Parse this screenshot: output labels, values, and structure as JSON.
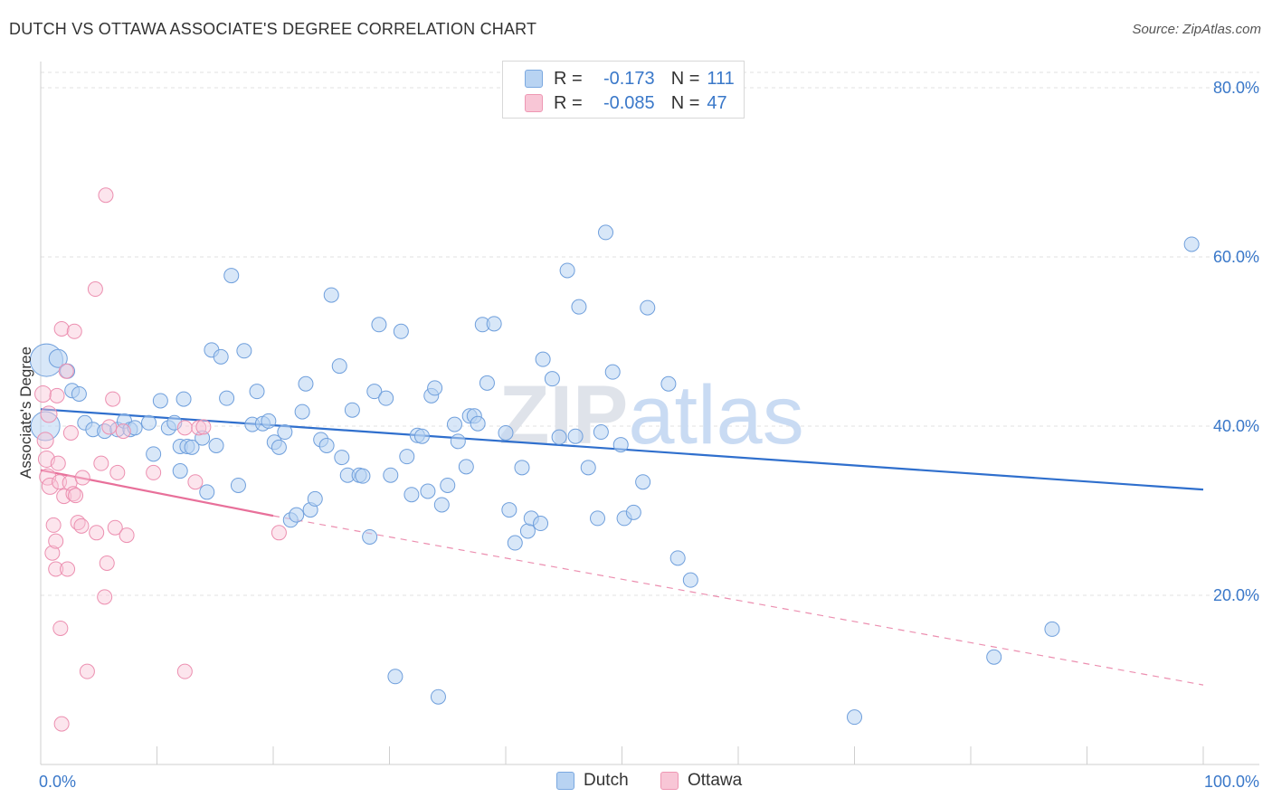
{
  "title": "DUTCH VS OTTAWA ASSOCIATE'S DEGREE CORRELATION CHART",
  "source": "Source: ZipAtlas.com",
  "watermark": "ZIPatlas",
  "legend": {
    "rows": [
      {
        "r_label": "R =",
        "r_value": "-0.173",
        "n_label": "N =",
        "n_value": "111"
      },
      {
        "r_label": "R =",
        "r_value": "-0.085",
        "n_label": "N =",
        "n_value": "47"
      }
    ]
  },
  "bottom_legend": [
    "Dutch",
    "Ottawa"
  ],
  "colors": {
    "dutch": "#3a78c9",
    "dutch_fill": "#b8d3f2",
    "ottawa": "#e8709a",
    "ottawa_fill": "#f8c6d6"
  },
  "chart_data": {
    "type": "scatter",
    "title": "DUTCH VS OTTAWA ASSOCIATE'S DEGREE CORRELATION CHART",
    "xlabel": "",
    "ylabel": "Associate's Degree",
    "xlim": [
      0,
      100
    ],
    "ylim": [
      0,
      85
    ],
    "x_tick_labels": [
      "0.0%",
      "100.0%"
    ],
    "y_ticks": [
      20,
      40,
      60,
      80
    ],
    "y_tick_labels": [
      "20.0%",
      "40.0%",
      "60.0%",
      "80.0%"
    ],
    "grid": true,
    "legend_position": "top-center",
    "series": [
      {
        "name": "Dutch",
        "r": -0.173,
        "n": 111,
        "trend": {
          "x": [
            0,
            100
          ],
          "y": [
            42.0,
            32.5
          ]
        },
        "points": [
          [
            0.5,
            47.8,
            18
          ],
          [
            0.4,
            40.0,
            16
          ],
          [
            1.5,
            48.0,
            10
          ],
          [
            2.3,
            46.5,
            8
          ],
          [
            2.7,
            44.2,
            8
          ],
          [
            3.3,
            43.8,
            8
          ],
          [
            3.8,
            40.4,
            8
          ],
          [
            4.5,
            39.6,
            8
          ],
          [
            5.5,
            39.4,
            8
          ],
          [
            6.6,
            39.6,
            8
          ],
          [
            7.2,
            40.6,
            8
          ],
          [
            7.7,
            39.6,
            8
          ],
          [
            8.1,
            39.8,
            8
          ],
          [
            9.3,
            40.4,
            8
          ],
          [
            9.7,
            36.7,
            8
          ],
          [
            10.3,
            43.0,
            8
          ],
          [
            11.0,
            39.8,
            8
          ],
          [
            11.5,
            40.4,
            8
          ],
          [
            12.0,
            37.6,
            8
          ],
          [
            12.6,
            37.6,
            8
          ],
          [
            12.0,
            34.7,
            8
          ],
          [
            13.9,
            38.6,
            8
          ],
          [
            12.3,
            43.2,
            8
          ],
          [
            13.0,
            37.5,
            8
          ],
          [
            14.3,
            32.2,
            8
          ],
          [
            14.7,
            49.0,
            8
          ],
          [
            15.1,
            37.7,
            8
          ],
          [
            15.5,
            48.2,
            8
          ],
          [
            16.0,
            43.3,
            8
          ],
          [
            16.4,
            57.8,
            8
          ],
          [
            17.0,
            33.0,
            8
          ],
          [
            17.5,
            48.9,
            8
          ],
          [
            18.2,
            40.2,
            8
          ],
          [
            18.6,
            44.1,
            8
          ],
          [
            19.1,
            40.3,
            8
          ],
          [
            19.6,
            40.6,
            8
          ],
          [
            20.1,
            38.1,
            8
          ],
          [
            20.5,
            37.5,
            8
          ],
          [
            21.0,
            39.3,
            8
          ],
          [
            21.5,
            28.9,
            8
          ],
          [
            22.0,
            29.5,
            8
          ],
          [
            22.5,
            41.7,
            8
          ],
          [
            22.8,
            45.0,
            8
          ],
          [
            23.2,
            30.1,
            8
          ],
          [
            23.6,
            31.4,
            8
          ],
          [
            24.1,
            38.4,
            8
          ],
          [
            24.6,
            37.7,
            8
          ],
          [
            25.0,
            55.5,
            8
          ],
          [
            25.7,
            47.1,
            8
          ],
          [
            25.9,
            36.3,
            8
          ],
          [
            26.4,
            34.2,
            8
          ],
          [
            26.8,
            41.9,
            8
          ],
          [
            27.4,
            34.2,
            8
          ],
          [
            27.7,
            34.1,
            8
          ],
          [
            28.3,
            26.9,
            8
          ],
          [
            28.7,
            44.1,
            8
          ],
          [
            29.1,
            52.0,
            8
          ],
          [
            29.7,
            43.3,
            8
          ],
          [
            30.1,
            34.2,
            8
          ],
          [
            30.5,
            10.4,
            8
          ],
          [
            31.0,
            51.2,
            8
          ],
          [
            31.5,
            36.4,
            8
          ],
          [
            31.9,
            31.9,
            8
          ],
          [
            32.4,
            38.9,
            8
          ],
          [
            32.8,
            38.8,
            8
          ],
          [
            33.3,
            32.3,
            8
          ],
          [
            33.6,
            43.6,
            8
          ],
          [
            33.9,
            44.5,
            8
          ],
          [
            34.2,
            8.0,
            8
          ],
          [
            34.5,
            30.7,
            8
          ],
          [
            35.0,
            33.0,
            8
          ],
          [
            35.6,
            40.2,
            8
          ],
          [
            35.9,
            38.2,
            8
          ],
          [
            36.6,
            35.2,
            8
          ],
          [
            36.9,
            41.2,
            8
          ],
          [
            37.3,
            41.2,
            8
          ],
          [
            37.6,
            40.3,
            8
          ],
          [
            38.0,
            52.0,
            8
          ],
          [
            38.4,
            45.1,
            8
          ],
          [
            39.0,
            52.1,
            8
          ],
          [
            40.0,
            39.2,
            8
          ],
          [
            40.3,
            30.1,
            8
          ],
          [
            40.8,
            26.2,
            8
          ],
          [
            41.4,
            35.1,
            8
          ],
          [
            41.9,
            27.6,
            8
          ],
          [
            42.2,
            29.1,
            8
          ],
          [
            43.0,
            28.5,
            8
          ],
          [
            43.2,
            47.9,
            8
          ],
          [
            44.0,
            45.6,
            8
          ],
          [
            44.6,
            38.7,
            8
          ],
          [
            45.3,
            58.4,
            8
          ],
          [
            46.0,
            38.8,
            8
          ],
          [
            46.3,
            54.1,
            8
          ],
          [
            47.1,
            35.1,
            8
          ],
          [
            47.9,
            29.1,
            8
          ],
          [
            48.2,
            39.3,
            8
          ],
          [
            48.6,
            62.9,
            8
          ],
          [
            49.2,
            46.4,
            8
          ],
          [
            49.9,
            37.8,
            8
          ],
          [
            50.2,
            29.1,
            8
          ],
          [
            51.0,
            29.8,
            8
          ],
          [
            51.8,
            33.4,
            8
          ],
          [
            52.2,
            54.0,
            8
          ],
          [
            54.0,
            45.0,
            8
          ],
          [
            54.8,
            24.4,
            8
          ],
          [
            55.9,
            21.8,
            8
          ],
          [
            70.0,
            5.6,
            8
          ],
          [
            82.0,
            12.7,
            8
          ],
          [
            87.0,
            16.0,
            8
          ],
          [
            99.0,
            61.5,
            8
          ],
          [
            99.5,
            60.0,
            0
          ]
        ]
      },
      {
        "name": "Ottawa",
        "r": -0.085,
        "n": 47,
        "trend": {
          "x": [
            0,
            20
          ],
          "y": [
            34.8,
            29.4
          ]
        },
        "trend_dashed": {
          "x": [
            20,
            100
          ],
          "y": [
            29.4,
            9.4
          ]
        },
        "points": [
          [
            0.2,
            43.8,
            9
          ],
          [
            0.4,
            38.3,
            9
          ],
          [
            0.5,
            36.1,
            9
          ],
          [
            0.6,
            34.0,
            9
          ],
          [
            0.7,
            41.4,
            9
          ],
          [
            0.8,
            32.9,
            9
          ],
          [
            1.0,
            25.0,
            8
          ],
          [
            1.1,
            28.3,
            8
          ],
          [
            1.3,
            26.4,
            8
          ],
          [
            1.3,
            23.1,
            8
          ],
          [
            1.4,
            43.6,
            8
          ],
          [
            1.5,
            35.6,
            8
          ],
          [
            1.6,
            33.4,
            8
          ],
          [
            1.7,
            16.1,
            8
          ],
          [
            1.8,
            51.5,
            8
          ],
          [
            1.8,
            4.8,
            8
          ],
          [
            2.0,
            31.7,
            8
          ],
          [
            2.2,
            46.5,
            8
          ],
          [
            2.3,
            23.1,
            8
          ],
          [
            2.5,
            33.3,
            8
          ],
          [
            2.6,
            39.2,
            8
          ],
          [
            2.8,
            32.0,
            8
          ],
          [
            2.9,
            51.2,
            8
          ],
          [
            3.0,
            31.8,
            8
          ],
          [
            3.2,
            28.6,
            8
          ],
          [
            3.5,
            28.2,
            8
          ],
          [
            3.6,
            33.9,
            8
          ],
          [
            4.0,
            11.0,
            8
          ],
          [
            4.7,
            56.2,
            8
          ],
          [
            4.8,
            27.4,
            8
          ],
          [
            5.2,
            35.6,
            8
          ],
          [
            5.5,
            19.8,
            8
          ],
          [
            5.6,
            67.3,
            8
          ],
          [
            5.7,
            23.8,
            8
          ],
          [
            5.9,
            39.9,
            8
          ],
          [
            6.2,
            43.2,
            8
          ],
          [
            6.4,
            28.0,
            8
          ],
          [
            6.6,
            34.5,
            8
          ],
          [
            7.1,
            39.4,
            8
          ],
          [
            7.4,
            27.1,
            8
          ],
          [
            9.7,
            34.5,
            8
          ],
          [
            12.4,
            39.8,
            8
          ],
          [
            12.4,
            11.0,
            8
          ],
          [
            13.3,
            33.4,
            8
          ],
          [
            13.6,
            39.8,
            8
          ],
          [
            14.0,
            39.9,
            8
          ],
          [
            20.5,
            27.4,
            8
          ]
        ]
      }
    ]
  }
}
